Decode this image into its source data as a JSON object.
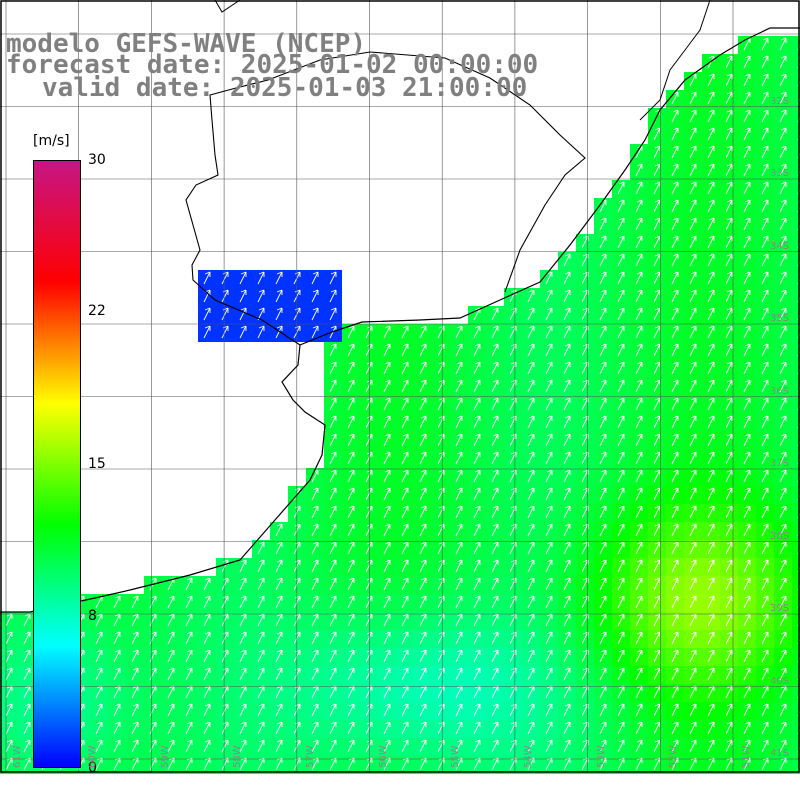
{
  "title": {
    "line1": "modelo GEFS-WAVE (NCEP)",
    "line2": "forecast date: 2025-01-02 00:00:00",
    "line3": "valid date: 2025-01-03 21:00:00"
  },
  "colorbar": {
    "unit": "[m/s]",
    "ticks": [
      "30",
      "22",
      "15",
      "8",
      "0"
    ],
    "min": 0,
    "max": 30,
    "colors": [
      "#0000ff",
      "#00ffff",
      "#00ff00",
      "#ffff00",
      "#ff0000",
      "#c71585"
    ]
  },
  "grid": {
    "lat_labels": [
      "32S",
      "33S",
      "34S",
      "35S",
      "36S",
      "37S",
      "38S",
      "39S",
      "40S",
      "41S"
    ],
    "lon_labels": [
      "61W",
      "60W",
      "59W",
      "58W",
      "57W",
      "56W",
      "55W",
      "54W",
      "53W",
      "52W",
      "51W"
    ]
  },
  "field": {
    "wind_direction": "southwesterly (arrows pointing NE)",
    "max_region": "yellow ~15 m/s near 52W 39S",
    "estuary_region": "blue ~0-3 m/s in Rio de la Plata"
  }
}
